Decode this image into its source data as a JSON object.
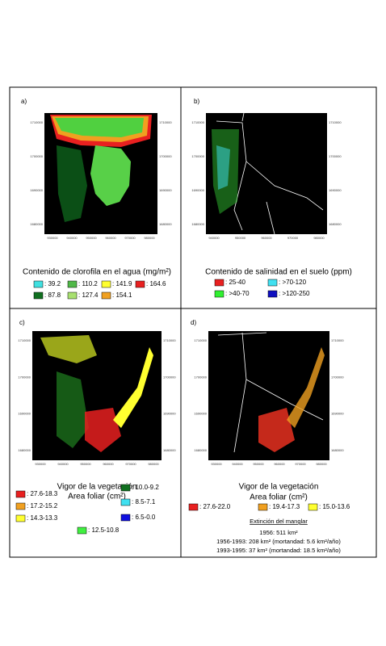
{
  "panels": [
    {
      "label": "a)",
      "title": "Contenido de clorofila en el agua (mg/m²)",
      "yticks": [
        "1710000",
        "1700000",
        "1690000",
        "1680000"
      ],
      "xticks": [
        "930000",
        "940000",
        "950000",
        "960000",
        "970000",
        "980000"
      ],
      "legend": [
        {
          "label": ": 39.2",
          "color": "#40e0e0"
        },
        {
          "label": ": 110.2",
          "color": "#50b848"
        },
        {
          "label": ": 141.9",
          "color": "#ffff30"
        },
        {
          "label": ": 164.6",
          "color": "#e82020"
        },
        {
          "label": ": 87.8",
          "color": "#107020"
        },
        {
          "label": ": 127.4",
          "color": "#a8e070"
        },
        {
          "label": ": 154.1",
          "color": "#f0a020"
        }
      ]
    },
    {
      "label": "b)",
      "title": "Contenido de salinidad en el suelo (ppm)",
      "yticks": [
        "1710000",
        "1700000",
        "1690000",
        "1680000"
      ],
      "xticks": [
        "940000",
        "950000",
        "960000",
        "970000",
        "980000"
      ],
      "legend": [
        {
          "label": ": 25-40",
          "color": "#e82020"
        },
        {
          "label": ": >70-120",
          "color": "#40e0f0"
        },
        {
          "label": ": >40-70",
          "color": "#30f030"
        },
        {
          "label": ": >120-250",
          "color": "#1010c0"
        }
      ]
    },
    {
      "label": "c)",
      "title": "Vigor de la vegetación",
      "subtitle": "Area foliar (cm²)",
      "yticks": [
        "1710000",
        "1700000",
        "1690000",
        "1680000"
      ],
      "xticks": [
        "930000",
        "940000",
        "950000",
        "960000",
        "970000",
        "980000"
      ],
      "legend": [
        {
          "label": ": 27.6-18.3",
          "color": "#e82020"
        },
        {
          "label": ": 10.0-9.2",
          "color": "#107020"
        },
        {
          "label": ": 17.2-15.2",
          "color": "#f0a020"
        },
        {
          "label": ": 8.5-7.1",
          "color": "#40e0f0"
        },
        {
          "label": ": 14.3-13.3",
          "color": "#ffff30"
        },
        {
          "label": ": 12.5-10.8",
          "color": "#40f040"
        },
        {
          "label": ": 6.5-0.0",
          "color": "#1010e0"
        }
      ]
    },
    {
      "label": "d)",
      "title": "Vigor de la vegetación",
      "subtitle": "Area foliar (cm²)",
      "yticks": [
        "1710000",
        "1700000",
        "1690000",
        "1680000"
      ],
      "xticks": [
        "930000",
        "940000",
        "950000",
        "960000",
        "970000",
        "980000"
      ],
      "legend": [
        {
          "label": ": 27.6-22.0",
          "color": "#e82020"
        },
        {
          "label": ": 19.4-17.3",
          "color": "#f0a020"
        },
        {
          "label": ": 15.0-13.6",
          "color": "#ffff30"
        }
      ],
      "note": {
        "heading": "Extinción del manglar",
        "lines": [
          "1956: 511 km²",
          "1956-1993: 208 km² (mortandad: 5.6 km²/año)",
          "1993-1995: 37 km² (mortandad: 18.5 km²/año)"
        ]
      }
    }
  ]
}
